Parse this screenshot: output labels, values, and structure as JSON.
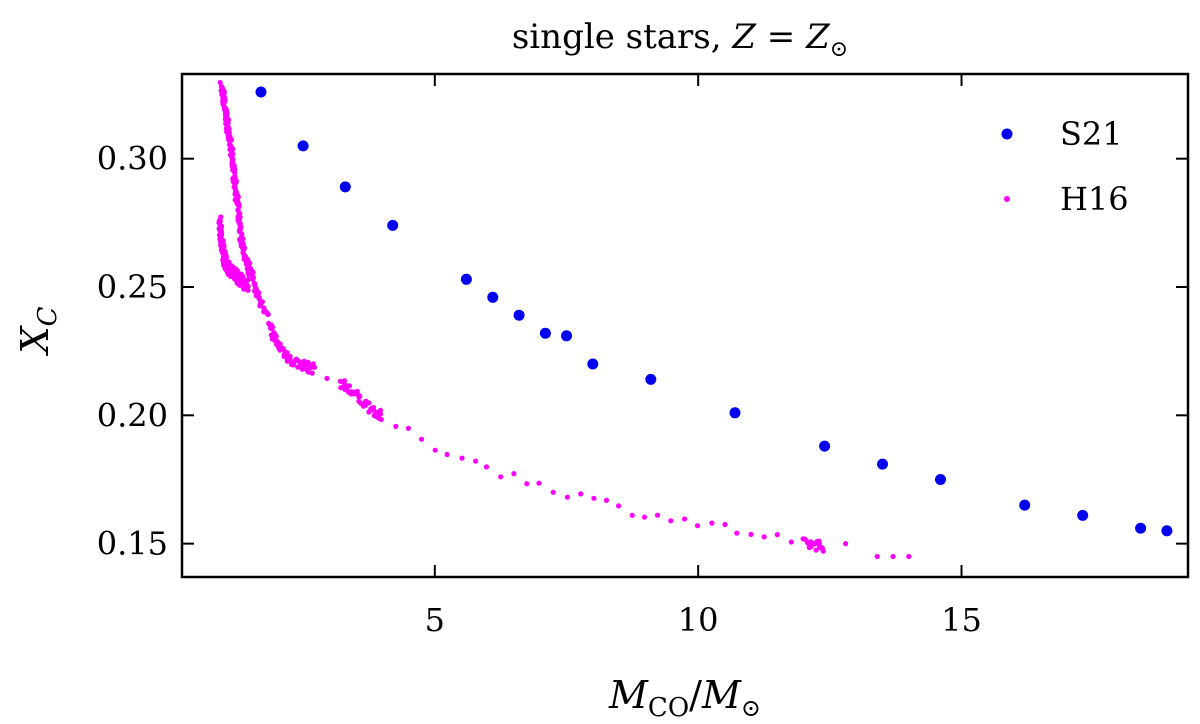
{
  "chart_data": {
    "type": "scatter",
    "title_main": "single stars, ",
    "title_var": "Z",
    "title_eq": " = ",
    "title_var2": "Z",
    "title_sub": "⊙",
    "xlabel_main": "M",
    "xlabel_sub": "CO",
    "xlabel_sep": "/",
    "xlabel_main2": "M",
    "xlabel_sub2": "⊙",
    "ylabel_main": "X",
    "ylabel_sub": "C",
    "xlim": [
      0.2,
      19.3
    ],
    "ylim": [
      0.137,
      0.333
    ],
    "xticks": [
      5,
      10,
      15
    ],
    "xtick_labels": [
      "5",
      "10",
      "15"
    ],
    "yticks": [
      0.15,
      0.2,
      0.25,
      0.3
    ],
    "ytick_labels": [
      "0.15",
      "0.20",
      "0.25",
      "0.30"
    ],
    "legend_position": "top-right",
    "colors": {
      "s21": "#0000ee",
      "h16": "#ff00ff"
    },
    "series": [
      {
        "name": "S21",
        "x": [
          1.7,
          2.5,
          3.3,
          4.2,
          5.6,
          6.1,
          6.6,
          7.1,
          7.5,
          8.0,
          9.1,
          10.7,
          12.4,
          13.5,
          14.6,
          16.2,
          17.3,
          18.4,
          18.9
        ],
        "y": [
          0.326,
          0.305,
          0.289,
          0.274,
          0.253,
          0.246,
          0.239,
          0.232,
          0.231,
          0.22,
          0.214,
          0.201,
          0.188,
          0.181,
          0.175,
          0.165,
          0.161,
          0.156,
          0.155
        ]
      },
      {
        "name": "H16",
        "x": [
          0.95,
          1.0,
          1.05,
          1.1,
          1.15,
          1.2,
          1.25,
          1.3,
          1.4,
          1.5,
          1.7,
          2.0,
          2.3,
          2.7,
          3.2,
          3.6,
          4.0,
          4.5,
          5.0,
          5.5,
          6.0,
          6.5,
          7.0,
          7.5,
          8.0,
          8.5,
          9.0,
          9.5,
          10.0,
          10.5,
          11.0,
          11.5,
          12.0,
          12.4,
          12.8,
          13.4,
          13.7,
          14.0
        ],
        "y": [
          0.328,
          0.322,
          0.315,
          0.308,
          0.3,
          0.292,
          0.283,
          0.272,
          0.261,
          0.256,
          0.244,
          0.228,
          0.221,
          0.218,
          0.213,
          0.206,
          0.199,
          0.193,
          0.188,
          0.184,
          0.18,
          0.176,
          0.173,
          0.17,
          0.167,
          0.164,
          0.162,
          0.16,
          0.158,
          0.156,
          0.154,
          0.152,
          0.15,
          0.149,
          0.15,
          0.145,
          0.145,
          0.145
        ],
        "x2": [
          0.92,
          0.95,
          1.0,
          1.05,
          1.1,
          1.2,
          1.3,
          1.45
        ],
        "y2": [
          0.276,
          0.268,
          0.262,
          0.258,
          0.257,
          0.255,
          0.253,
          0.25
        ]
      }
    ]
  }
}
